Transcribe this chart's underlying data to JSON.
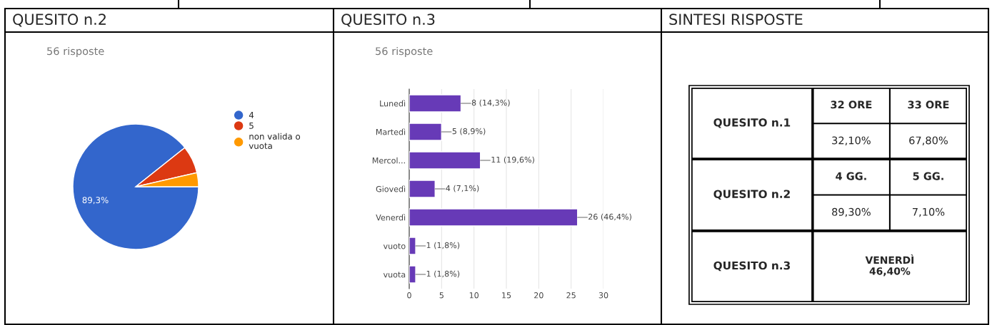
{
  "chart_data": [
    {
      "type": "pie",
      "title": "QUESITO n.2",
      "subtitle": "56 risposte",
      "categories": [
        "4",
        "5",
        "non valida o vuota"
      ],
      "values": [
        89.3,
        7.1,
        3.6
      ],
      "colors": [
        "#3366cc",
        "#dc3912",
        "#ff9900"
      ],
      "value_labels": [
        "89,3%",
        null,
        null
      ],
      "legend": "right"
    },
    {
      "type": "bar",
      "orientation": "horizontal",
      "title": "QUESITO n.3",
      "subtitle": "56 risposte",
      "categories": [
        "Lunedì",
        "Martedì",
        "Mercol...",
        "Giovedì",
        "Venerdì",
        "vuoto",
        "vuota"
      ],
      "values": [
        8,
        5,
        11,
        4,
        26,
        1,
        1
      ],
      "value_labels": [
        "8 (14,3%)",
        "5 (8,9%)",
        "11 (19,6%)",
        "4 (7,1%)",
        "26 (46,4%)",
        "1 (1,8%)",
        "1 (1,8%)"
      ],
      "color": "#673ab7",
      "xlim": [
        0,
        30
      ],
      "xticks": [
        0,
        5,
        10,
        15,
        20,
        25,
        30
      ],
      "grid": "x"
    },
    {
      "type": "other",
      "title": "SINTESI RISPOSTE",
      "annotations": [
        "QUESITO n.1",
        "32 ORE",
        "33 ORE",
        "32,10%",
        "67,80%",
        "QUESITO n.2",
        "4 GG.",
        "5 GG.",
        "89,30%",
        "7,10%",
        "QUESITO n.3",
        "VENERDÌ\n46,40%"
      ]
    }
  ]
}
